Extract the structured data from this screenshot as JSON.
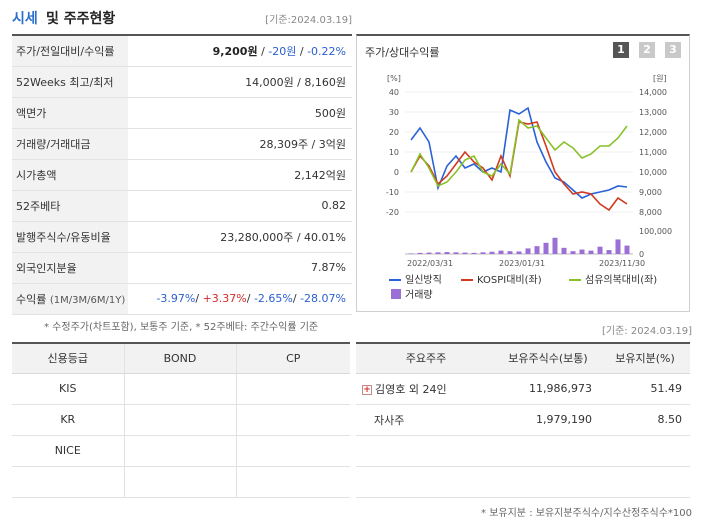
{
  "header": {
    "title_accent": "시세",
    "title_rest": "및 주주현황",
    "as_of": "[기준:2024.03.19]"
  },
  "price_rows": [
    {
      "label": "주가/전일대비/수익률",
      "price": "9,200원",
      "sep1": " / ",
      "change": "-20원",
      "sep2": " / ",
      "rate": "-0.22%"
    },
    {
      "label": "52Weeks 최고/최저",
      "value": "14,000원 / 8,160원"
    },
    {
      "label": "액면가",
      "value": "500원"
    },
    {
      "label": "거래량/거래대금",
      "value": "28,309주 / 3억원"
    },
    {
      "label": "시가총액",
      "value": "2,142억원"
    },
    {
      "label": "52주베타",
      "value": "0.82"
    },
    {
      "label": "발행주식수/유동비율",
      "value": "23,280,000주 / 40.01%"
    },
    {
      "label": "외국인지분율",
      "value": "7.87%"
    },
    {
      "label": "수익률",
      "label_small": "(1M/3M/6M/1Y)",
      "r1": "-3.97%",
      "r2": "+3.37%",
      "r3": "-2.65%",
      "r4": "-28.07%",
      "sep": "/ "
    }
  ],
  "note1": "* 수정주가(차트포함), 보통주 기준, * 52주베타: 주간수익률 기준",
  "chart": {
    "title": "주가/상대수익률",
    "pages": [
      "1",
      "2",
      "3"
    ],
    "left_unit": "[%]",
    "right_unit": "[원]",
    "legend": {
      "s1": "일신방직",
      "s2": "KOSPI대비(좌)",
      "s3": "섬유의복대비(좌)",
      "vol": "거래량"
    },
    "colors": {
      "s1": "#2a62d6",
      "s2": "#d13a1f",
      "s3": "#88c128",
      "vol": "#9b6fd6"
    }
  },
  "chart_data": {
    "type": "line",
    "x_ticks": [
      "2022/03/31",
      "2023/01/31",
      "2023/11/30"
    ],
    "y_left_ticks": [
      "40",
      "30",
      "20",
      "10",
      "0",
      "-10",
      "-20"
    ],
    "y_right_ticks": [
      "14,000",
      "13,000",
      "12,000",
      "11,000",
      "10,000",
      "9,000",
      "8,000"
    ],
    "vol_ticks": [
      "100,000",
      "0"
    ],
    "ylim_left": [
      -20,
      40
    ],
    "series": [
      {
        "name": "일신방직",
        "values": [
          16,
          22,
          15,
          -8,
          3,
          8,
          2,
          4,
          0,
          2,
          0,
          31,
          29,
          32,
          15,
          5,
          -3,
          -5,
          -9,
          -13,
          -11,
          -10,
          -9,
          -7,
          -7.5
        ]
      },
      {
        "name": "KOSPI대비(좌)",
        "values": [
          0,
          8,
          3,
          -6,
          -2,
          4,
          10,
          5,
          2,
          -4,
          8,
          -2,
          25,
          24,
          25,
          13,
          0,
          -6,
          -11,
          -10,
          -11,
          -16,
          -19,
          -13,
          -16
        ]
      },
      {
        "name": "섬유의복대비(좌)",
        "values": [
          0,
          9,
          2,
          -7,
          -5,
          0,
          6,
          8,
          0,
          -2,
          4,
          -1,
          26,
          22,
          23,
          17,
          11,
          15,
          12,
          7,
          9,
          13,
          13,
          17,
          23
        ]
      }
    ],
    "volume": [
      0.02,
      0.04,
      0.05,
      0.06,
      0.07,
      0.06,
      0.05,
      0.04,
      0.06,
      0.08,
      0.12,
      0.1,
      0.09,
      0.2,
      0.28,
      0.4,
      0.58,
      0.22,
      0.1,
      0.16,
      0.12,
      0.26,
      0.14,
      0.52,
      0.3
    ]
  },
  "as_of2": "[기준: 2024.03.19]",
  "credit": {
    "headers": [
      "신용등급",
      "BOND",
      "CP"
    ],
    "rows": [
      {
        "agency": "KIS",
        "bond": "",
        "cp": ""
      },
      {
        "agency": "KR",
        "bond": "",
        "cp": ""
      },
      {
        "agency": "NICE",
        "bond": "",
        "cp": ""
      },
      {
        "agency": "",
        "bond": "",
        "cp": ""
      }
    ]
  },
  "holders": {
    "headers": [
      "주요주주",
      "보유주식수(보통)",
      "보유지분(%)"
    ],
    "rows": [
      {
        "name": "김영호 외 24인",
        "shares": "11,986,973",
        "pct": "51.49",
        "expand": "+"
      },
      {
        "name": "자사주",
        "shares": "1,979,190",
        "pct": "8.50",
        "expand": ""
      },
      {
        "name": "",
        "shares": "",
        "pct": "",
        "expand": ""
      },
      {
        "name": "",
        "shares": "",
        "pct": "",
        "expand": ""
      }
    ]
  },
  "note2": "* 보유지분 : 보유지분주식수/지수산정주식수*100"
}
